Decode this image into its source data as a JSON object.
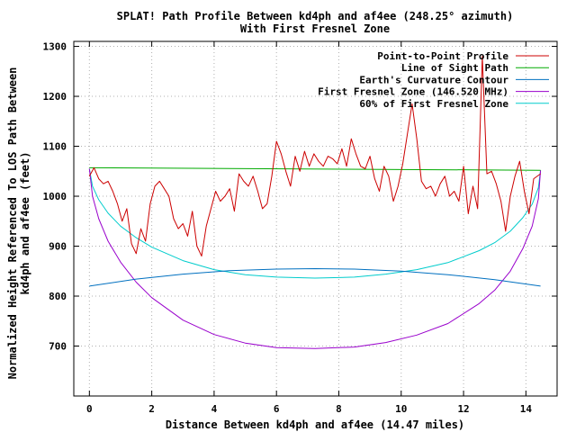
{
  "chart_data": {
    "type": "line",
    "title_line1": "SPLAT! Path Profile Between kd4ph and af4ee (248.25° azimuth)",
    "title_line2": "With First Fresnel Zone",
    "xlabel": "Distance Between kd4ph and af4ee (14.47 miles)",
    "ylabel_line1": "Normalized Height Referenced To LOS Path Between",
    "ylabel_line2": "kd4ph and af4ee (feet)",
    "xlim": [
      -0.5,
      15
    ],
    "ylim": [
      600,
      1310
    ],
    "x_ticks": [
      0,
      2,
      4,
      6,
      8,
      10,
      12,
      14
    ],
    "y_ticks": [
      700,
      800,
      900,
      1000,
      1100,
      1200,
      1300
    ],
    "grid": true,
    "legend_position": "top-right",
    "series": [
      {
        "name": "Point-to-Point Profile",
        "color": "#cc0000",
        "x": [
          0.0,
          0.15,
          0.3,
          0.45,
          0.6,
          0.75,
          0.9,
          1.05,
          1.2,
          1.35,
          1.5,
          1.65,
          1.8,
          1.95,
          2.1,
          2.25,
          2.4,
          2.55,
          2.7,
          2.85,
          3.0,
          3.15,
          3.3,
          3.45,
          3.6,
          3.75,
          3.9,
          4.05,
          4.2,
          4.35,
          4.5,
          4.65,
          4.8,
          4.95,
          5.1,
          5.25,
          5.4,
          5.55,
          5.7,
          5.85,
          6.0,
          6.15,
          6.3,
          6.45,
          6.6,
          6.75,
          6.9,
          7.05,
          7.2,
          7.35,
          7.5,
          7.65,
          7.8,
          7.95,
          8.1,
          8.25,
          8.4,
          8.55,
          8.7,
          8.85,
          9.0,
          9.15,
          9.3,
          9.45,
          9.6,
          9.75,
          9.9,
          10.05,
          10.2,
          10.35,
          10.5,
          10.65,
          10.8,
          10.95,
          11.1,
          11.25,
          11.4,
          11.55,
          11.7,
          11.85,
          12.0,
          12.15,
          12.3,
          12.45,
          12.6,
          12.75,
          12.9,
          13.05,
          13.2,
          13.35,
          13.5,
          13.65,
          13.8,
          13.95,
          14.1,
          14.25,
          14.47
        ],
        "values": [
          1040,
          1057,
          1035,
          1025,
          1030,
          1010,
          985,
          950,
          975,
          905,
          885,
          935,
          910,
          985,
          1020,
          1030,
          1015,
          1000,
          955,
          935,
          945,
          920,
          970,
          900,
          880,
          940,
          975,
          1010,
          990,
          1000,
          1015,
          970,
          1045,
          1030,
          1020,
          1040,
          1010,
          975,
          985,
          1040,
          1110,
          1085,
          1050,
          1020,
          1080,
          1050,
          1090,
          1060,
          1085,
          1070,
          1060,
          1080,
          1075,
          1065,
          1095,
          1060,
          1115,
          1085,
          1060,
          1055,
          1080,
          1035,
          1010,
          1060,
          1040,
          990,
          1020,
          1065,
          1125,
          1185,
          1115,
          1030,
          1015,
          1020,
          1000,
          1025,
          1040,
          1000,
          1010,
          990,
          1060,
          965,
          1020,
          975,
          1280,
          1045,
          1050,
          1025,
          990,
          930,
          1000,
          1040,
          1070,
          1010,
          965,
          1035,
          1045
        ]
      },
      {
        "name": "Line of Sight Path",
        "color": "#00aa00",
        "x": [
          0.0,
          14.47
        ],
        "values": [
          1057,
          1052
        ]
      },
      {
        "name": "Earth's Curvature Contour",
        "color": "#0070c0",
        "x": [
          0.0,
          1.5,
          3.0,
          4.5,
          6.0,
          7.235,
          8.5,
          10.0,
          11.5,
          13.0,
          14.47
        ],
        "values": [
          820,
          834,
          844,
          851,
          854,
          855,
          854,
          850,
          843,
          833,
          820
        ]
      },
      {
        "name": "First Fresnel Zone (146.520 MHz)",
        "color": "#9900cc",
        "x": [
          0.0,
          0.1,
          0.3,
          0.6,
          1.0,
          1.5,
          2.0,
          3.0,
          4.0,
          5.0,
          6.0,
          7.235,
          8.5,
          9.5,
          10.5,
          11.5,
          12.5,
          13.0,
          13.5,
          13.9,
          14.2,
          14.4,
          14.47
        ],
        "values": [
          1055,
          1000,
          955,
          910,
          868,
          828,
          797,
          752,
          723,
          706,
          697,
          695,
          698,
          707,
          722,
          745,
          785,
          812,
          850,
          895,
          940,
          995,
          1052
        ]
      },
      {
        "name": "60% of First Fresnel Zone",
        "color": "#00cccc",
        "x": [
          0.0,
          0.1,
          0.3,
          0.6,
          1.0,
          1.5,
          2.0,
          3.0,
          4.0,
          5.0,
          6.0,
          7.235,
          8.5,
          9.5,
          10.5,
          11.5,
          12.5,
          13.0,
          13.5,
          13.9,
          14.2,
          14.4,
          14.47
        ],
        "values": [
          1055,
          1020,
          993,
          966,
          940,
          917,
          898,
          871,
          853,
          843,
          838,
          836,
          838,
          844,
          853,
          867,
          891,
          907,
          930,
          957,
          984,
          1017,
          1052
        ]
      }
    ]
  }
}
